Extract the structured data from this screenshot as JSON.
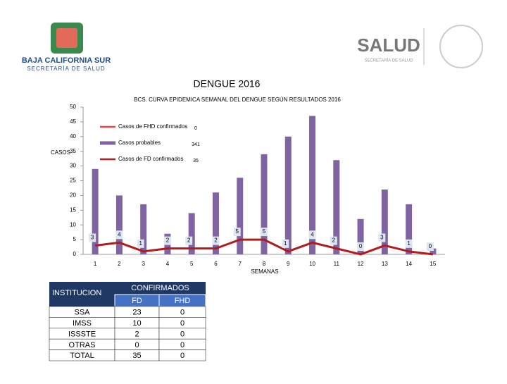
{
  "header": {
    "left_logo_title": "BAJA CALIFORNIA SUR",
    "left_logo_subtitle": "SECRETARÍA DE SALUD",
    "right_logo_title": "SALUD",
    "right_logo_subtitle": "SECRETARÍA DE SALUD",
    "heading": "DENGUE 2016"
  },
  "chart_data": {
    "type": "bar",
    "title": "BCS. CURVA EPIDEMICA SEMANAL DEL DENGUE SEGÚN RESULTADOS 2016",
    "x_label": "SEMANAS",
    "y_label": "CASOS",
    "categories": [
      "1",
      "2",
      "3",
      "4",
      "5",
      "6",
      "7",
      "8",
      "9",
      "10",
      "11",
      "12",
      "13",
      "14",
      "15"
    ],
    "ylim": [
      0,
      50
    ],
    "yticks": [
      0,
      5,
      10,
      15,
      20,
      25,
      30,
      35,
      40,
      45,
      50
    ],
    "grid": false,
    "series": [
      {
        "name": "Casos de FHD confirmados",
        "type": "line",
        "color": "#e8434b",
        "total": 0
      },
      {
        "name": "Casos probables",
        "type": "bar",
        "color": "#8064a2",
        "total": 341,
        "values": [
          29,
          20,
          17,
          7,
          14,
          21,
          26,
          34,
          40,
          47,
          32,
          12,
          22,
          17,
          2
        ]
      },
      {
        "name": "Casos de FD confirmados",
        "type": "line",
        "color": "#b01c1c",
        "total": 35,
        "values": [
          3,
          4,
          1,
          2,
          2,
          2,
          5,
          5,
          1,
          4,
          2,
          0,
          3,
          1,
          0
        ]
      }
    ]
  },
  "table": {
    "header": [
      "INSTITUCION",
      "CONFIRMADOS"
    ],
    "subheader": [
      "FD",
      "FHD"
    ],
    "rows": [
      [
        "SSA",
        "23",
        "0"
      ],
      [
        "IMSS",
        "10",
        "0"
      ],
      [
        "ISSSTE",
        "2",
        "0"
      ],
      [
        "OTRAS",
        "0",
        "0"
      ],
      [
        "TOTAL",
        "35",
        "0"
      ]
    ]
  }
}
